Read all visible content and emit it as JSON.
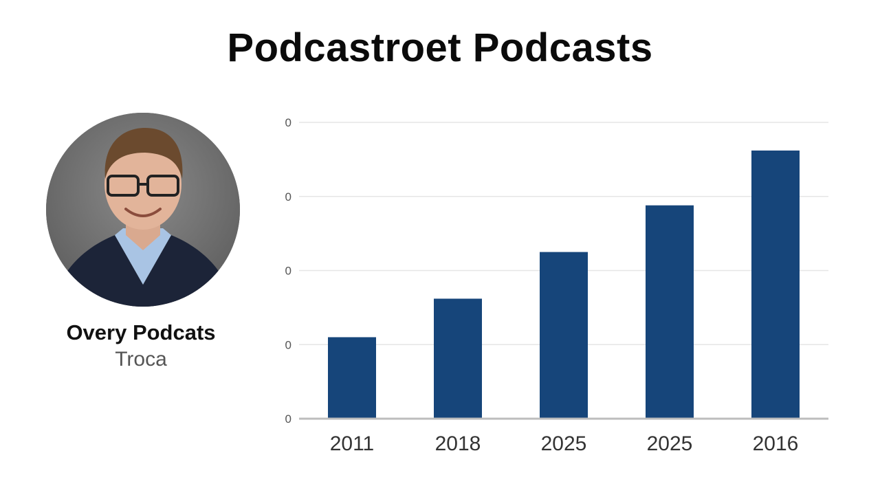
{
  "header": {
    "title": "Podcastroet Podcasts"
  },
  "person": {
    "avatar_icon": "person-portrait-icon",
    "name": "Overy Podcats",
    "subtitle": "Troca"
  },
  "colors": {
    "bar": "#16457a",
    "grid": "#e6e6e6",
    "axis": "#bdbdbd",
    "tick": "#555555"
  },
  "chart_data": {
    "type": "bar",
    "categories": [
      "2011",
      "2018",
      "2025",
      "2025",
      "2016"
    ],
    "values": [
      1.1,
      1.62,
      2.25,
      2.88,
      3.62
    ],
    "y_ticks": [
      "0",
      "0",
      "0",
      "0",
      "0"
    ],
    "ylim": [
      0,
      4
    ],
    "grid": true,
    "legend": "none",
    "title": "Podcastroet Podcasts",
    "xlabel": "",
    "ylabel": ""
  }
}
